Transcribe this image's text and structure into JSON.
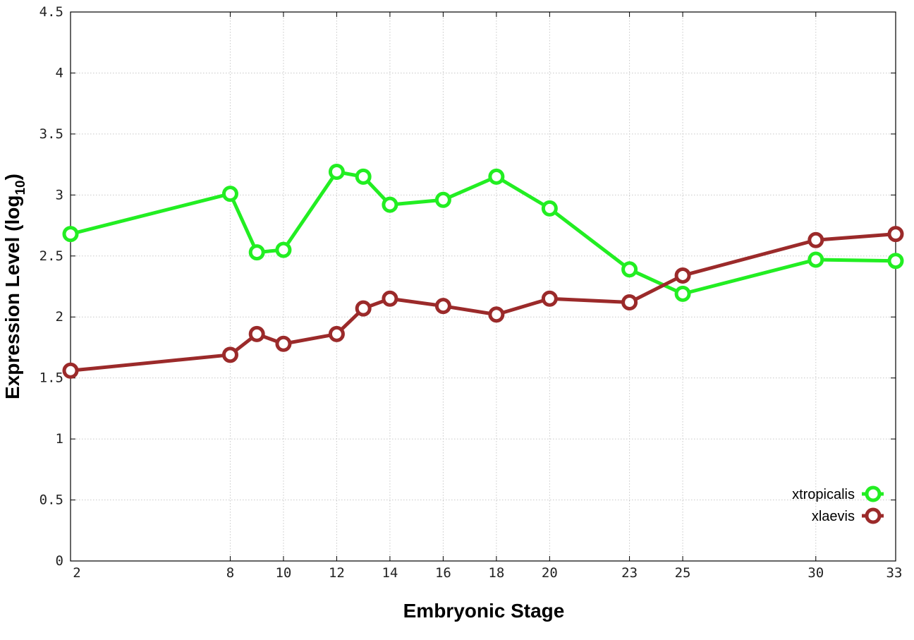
{
  "chart_data": {
    "type": "line",
    "xlabel": "Embryonic Stage",
    "ylabel": "Expression Level (log",
    "ylabel_subscript": "10",
    "ylabel_suffix": ")",
    "ylim": [
      0,
      4.5
    ],
    "yticks": [
      "0",
      "0.5",
      "1",
      "1.5",
      "2",
      "2.5",
      "3",
      "3.5",
      "4",
      "4.5"
    ],
    "x": [
      "2",
      "8",
      "9",
      "10",
      "12",
      "13",
      "14",
      "16",
      "18",
      "20",
      "23",
      "25",
      "30",
      "33"
    ],
    "xtick_labels": [
      "2",
      "8",
      "10",
      "12",
      "14",
      "16",
      "18",
      "20",
      "23",
      "25",
      "30",
      "33"
    ],
    "grid": true,
    "legend_position": "bottom-right",
    "series": [
      {
        "name": "xtropicalis",
        "color": "#22ee22",
        "values": [
          2.68,
          3.01,
          2.53,
          2.55,
          3.19,
          3.15,
          2.92,
          2.96,
          3.15,
          2.89,
          2.39,
          2.19,
          2.47,
          2.46
        ]
      },
      {
        "name": "xlaevis",
        "color": "#9b2a2a",
        "values": [
          1.56,
          1.69,
          1.86,
          1.78,
          1.86,
          2.07,
          2.15,
          2.09,
          2.02,
          2.15,
          2.12,
          2.34,
          2.63,
          2.68
        ]
      }
    ]
  }
}
